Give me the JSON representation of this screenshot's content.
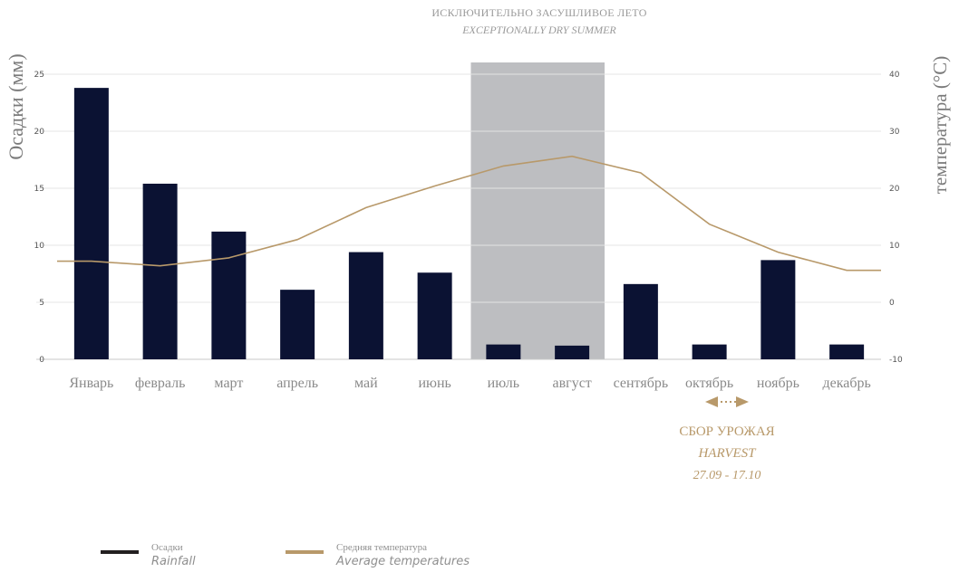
{
  "chart_data": {
    "type": "bar",
    "title": "ИСКЛЮЧИТЕЛЬНО ЗАСУШЛИВОЕ ЛЕТО",
    "subtitle": "EXCEPTIONALLY DRY SUMMER",
    "categories": [
      "Январь",
      "февраль",
      "март",
      "апрель",
      "май",
      "июнь",
      "июль",
      "август",
      "сентябрь",
      "октябрь",
      "ноябрь",
      "декабрь"
    ],
    "ylabel": "Осадки (мм)",
    "y2label": "температура (°C)",
    "ylim": [
      0,
      25
    ],
    "y2lim": [
      -10,
      40
    ],
    "yticks": [
      "0",
      "5",
      "10",
      "15",
      "20",
      "25"
    ],
    "y2ticks": [
      "-10",
      "0",
      "10",
      "20",
      "30",
      "40"
    ],
    "grid": true,
    "highlight": {
      "from": "июль",
      "to": "август",
      "color": "#bdbec1"
    },
    "series": [
      {
        "name": "Осадки",
        "type": "bar",
        "axis": "left",
        "color": "#0b1233",
        "values": [
          23.8,
          15.4,
          11.2,
          6.1,
          9.4,
          7.6,
          1.3,
          1.2,
          6.6,
          1.3,
          8.7,
          1.3
        ]
      },
      {
        "name": "Средняя температура",
        "type": "line",
        "axis": "right",
        "color": "#b8996a",
        "values": [
          7.2,
          6.4,
          7.8,
          11.0,
          16.6,
          20.4,
          23.9,
          25.6,
          22.7,
          13.7,
          8.8,
          5.6
        ]
      }
    ],
    "legend": {
      "position": "bottom-left",
      "items": [
        {
          "ru": "Осадки",
          "en": "Rainfall",
          "color": "#231f20"
        },
        {
          "ru": "Средняя температура",
          "en": "Average temperatures",
          "color": "#b8996a"
        }
      ]
    },
    "annotations": {
      "harvest_title": "СБОР УРОЖАЯ",
      "harvest_en": "HARVEST",
      "harvest_dates": "27.09 - 17.10",
      "harvest_color": "#b8996a"
    }
  }
}
